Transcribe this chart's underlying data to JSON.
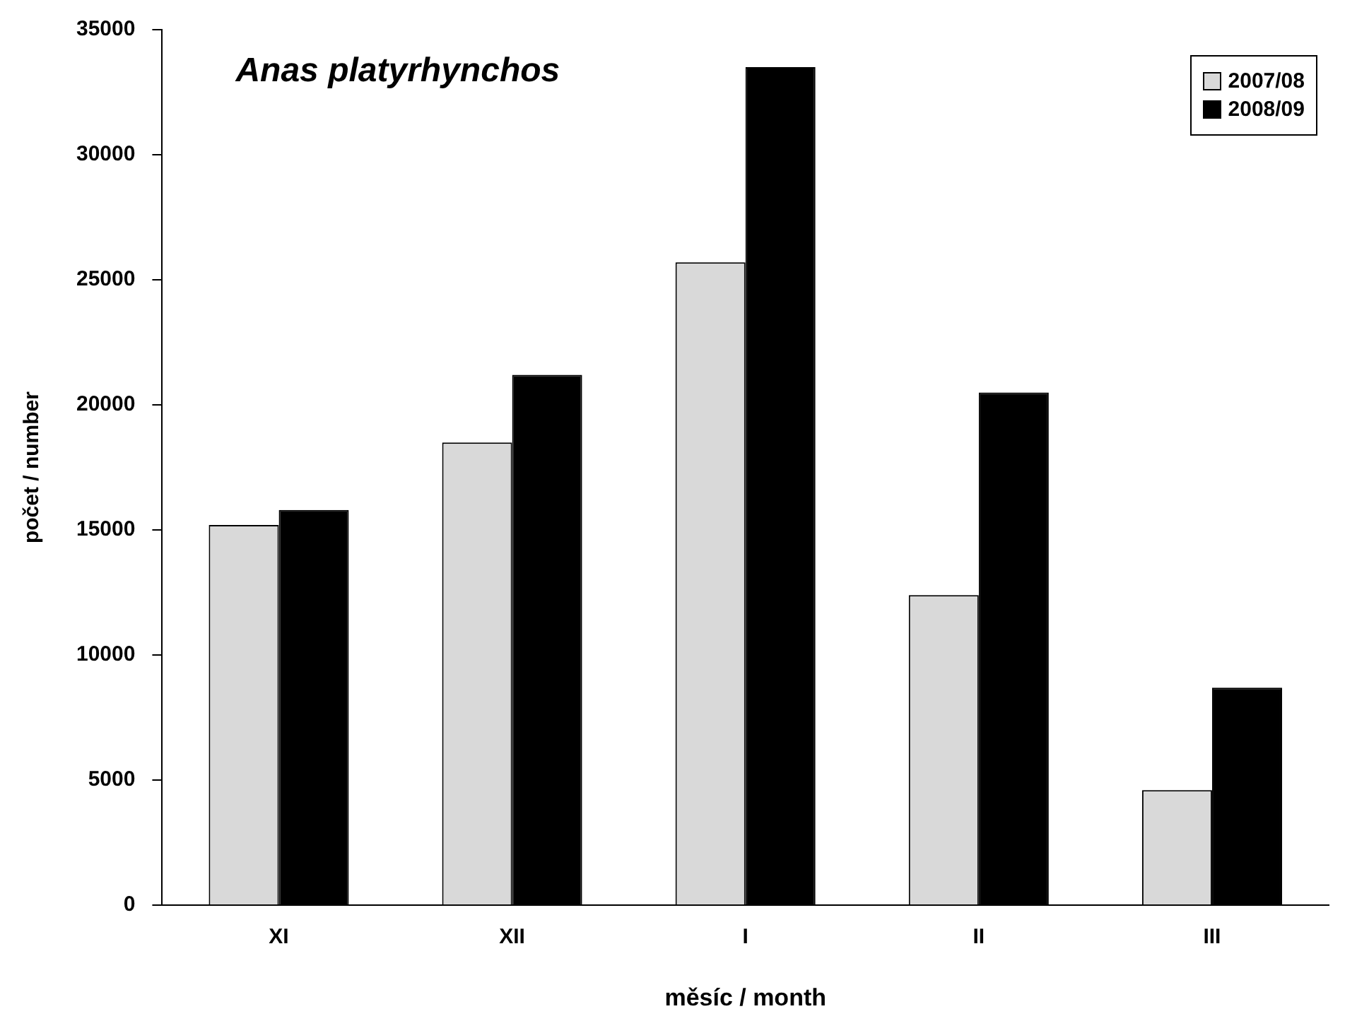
{
  "chart_data": {
    "type": "bar",
    "title": "Anas platyrhynchos",
    "xlabel": "měsíc / month",
    "ylabel": "počet / number",
    "categories": [
      "XI",
      "XII",
      "I",
      "II",
      "III"
    ],
    "series": [
      {
        "name": "2007/08",
        "color": "#d9d9d9",
        "values": [
          15200,
          18500,
          25700,
          12400,
          4600
        ]
      },
      {
        "name": "2008/09",
        "color": "#000000",
        "values": [
          15800,
          21200,
          33500,
          20500,
          8700
        ]
      }
    ],
    "ylim": [
      0,
      35000
    ],
    "yticks": [
      0,
      5000,
      10000,
      15000,
      20000,
      25000,
      30000,
      35000
    ],
    "grid": false,
    "legend": "top right"
  }
}
